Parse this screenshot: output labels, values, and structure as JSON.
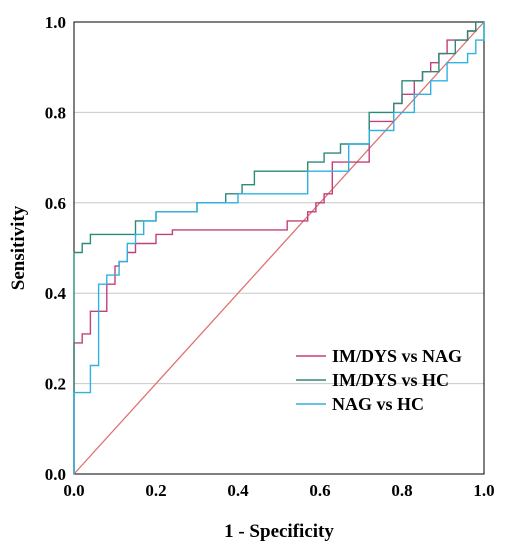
{
  "chart_data": {
    "type": "line",
    "title": "",
    "xlabel": "1 - Specificity",
    "ylabel": "Sensitivity",
    "xlim": [
      0,
      1
    ],
    "ylim": [
      0,
      1
    ],
    "xticks": [
      "0.0",
      "0.2",
      "0.4",
      "0.6",
      "0.8",
      "1.0"
    ],
    "yticks": [
      "0.0",
      "0.2",
      "0.4",
      "0.6",
      "0.8",
      "1.0"
    ],
    "grid": "horizontal",
    "legend": "bottom-right",
    "reference_line": {
      "x": [
        0,
        1
      ],
      "y": [
        0,
        1
      ],
      "color": "#e07070"
    },
    "series": [
      {
        "name": "IM/DYS vs NAG",
        "color": "#c2407a",
        "x": [
          0,
          0,
          0.02,
          0.02,
          0.04,
          0.04,
          0.06,
          0.06,
          0.08,
          0.08,
          0.1,
          0.1,
          0.11,
          0.11,
          0.13,
          0.13,
          0.15,
          0.15,
          0.17,
          0.17,
          0.2,
          0.2,
          0.24,
          0.24,
          0.48,
          0.48,
          0.52,
          0.52,
          0.57,
          0.57,
          0.59,
          0.59,
          0.61,
          0.61,
          0.63,
          0.63,
          0.67,
          0.67,
          0.72,
          0.72,
          0.74,
          0.74,
          0.78,
          0.78,
          0.8,
          0.8,
          0.83,
          0.83,
          0.85,
          0.85,
          0.87,
          0.87,
          0.89,
          0.89,
          0.91,
          0.91,
          0.93,
          0.93,
          0.96,
          0.96,
          0.98,
          0.98,
          1.0
        ],
        "y": [
          0,
          0.29,
          0.29,
          0.31,
          0.31,
          0.36,
          0.36,
          0.36,
          0.36,
          0.42,
          0.42,
          0.46,
          0.46,
          0.47,
          0.47,
          0.49,
          0.49,
          0.51,
          0.51,
          0.51,
          0.51,
          0.53,
          0.53,
          0.54,
          0.54,
          0.54,
          0.54,
          0.56,
          0.56,
          0.58,
          0.58,
          0.6,
          0.6,
          0.62,
          0.62,
          0.69,
          0.69,
          0.69,
          0.69,
          0.78,
          0.78,
          0.78,
          0.78,
          0.82,
          0.82,
          0.84,
          0.84,
          0.87,
          0.87,
          0.89,
          0.89,
          0.91,
          0.91,
          0.93,
          0.93,
          0.96,
          0.96,
          0.96,
          0.96,
          0.98,
          0.98,
          1.0,
          1.0
        ]
      },
      {
        "name": "IM/DYS vs HC",
        "color": "#2e8a78",
        "x": [
          0,
          0,
          0.02,
          0.02,
          0.04,
          0.04,
          0.08,
          0.08,
          0.15,
          0.15,
          0.2,
          0.2,
          0.24,
          0.24,
          0.3,
          0.3,
          0.37,
          0.37,
          0.41,
          0.41,
          0.44,
          0.44,
          0.57,
          0.57,
          0.61,
          0.61,
          0.65,
          0.65,
          0.72,
          0.72,
          0.74,
          0.74,
          0.78,
          0.78,
          0.8,
          0.8,
          0.85,
          0.85,
          0.89,
          0.89,
          0.93,
          0.93,
          0.96,
          0.96,
          0.98,
          0.98,
          1.0,
          1.0
        ],
        "y": [
          0,
          0.49,
          0.49,
          0.51,
          0.51,
          0.53,
          0.53,
          0.53,
          0.53,
          0.56,
          0.56,
          0.58,
          0.58,
          0.58,
          0.58,
          0.6,
          0.6,
          0.62,
          0.62,
          0.64,
          0.64,
          0.67,
          0.67,
          0.69,
          0.69,
          0.71,
          0.71,
          0.73,
          0.73,
          0.8,
          0.8,
          0.8,
          0.8,
          0.82,
          0.82,
          0.87,
          0.87,
          0.89,
          0.89,
          0.93,
          0.93,
          0.96,
          0.96,
          0.98,
          0.98,
          1.0,
          1.0,
          0.96
        ]
      },
      {
        "name": "NAG vs HC",
        "color": "#30b2e0",
        "x": [
          0,
          0,
          0.02,
          0.02,
          0.04,
          0.04,
          0.06,
          0.06,
          0.08,
          0.08,
          0.11,
          0.11,
          0.13,
          0.13,
          0.15,
          0.15,
          0.17,
          0.17,
          0.2,
          0.2,
          0.3,
          0.3,
          0.37,
          0.37,
          0.4,
          0.4,
          0.42,
          0.42,
          0.57,
          0.57,
          0.63,
          0.63,
          0.67,
          0.67,
          0.72,
          0.72,
          0.78,
          0.78,
          0.83,
          0.83,
          0.87,
          0.87,
          0.91,
          0.91,
          0.96,
          0.96,
          0.98,
          0.98,
          1.0,
          1.0
        ],
        "y": [
          0,
          0.18,
          0.18,
          0.18,
          0.18,
          0.24,
          0.24,
          0.42,
          0.42,
          0.44,
          0.44,
          0.47,
          0.47,
          0.51,
          0.51,
          0.53,
          0.53,
          0.56,
          0.56,
          0.58,
          0.58,
          0.6,
          0.6,
          0.6,
          0.6,
          0.62,
          0.62,
          0.62,
          0.62,
          0.67,
          0.67,
          0.67,
          0.67,
          0.73,
          0.73,
          0.76,
          0.76,
          0.8,
          0.8,
          0.84,
          0.84,
          0.87,
          0.87,
          0.91,
          0.91,
          0.93,
          0.93,
          0.96,
          0.96,
          1.0
        ]
      }
    ]
  }
}
